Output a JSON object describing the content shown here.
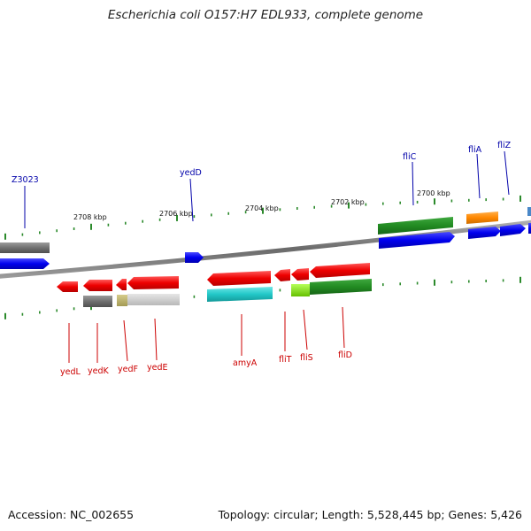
{
  "title": "Escherichia coli O157:H7 EDL933, complete genome",
  "accession": "Accession: NC_002655",
  "stats": "Topology: circular; Length: 5,528,445 bp; Genes: 5,426",
  "colors": {
    "backbone": "#888888",
    "tick": "#2b8a2b",
    "forward_label": "#0000aa",
    "reverse_label": "#cc0000"
  },
  "scale_labels": [
    "2708 kbp",
    "2706 kbp",
    "2704 kbp",
    "2702 kbp",
    "2700 kbp"
  ],
  "genes_forward": [
    {
      "name": "Z3023",
      "color": "#0000ee"
    },
    {
      "name": "yedD",
      "color": "#0000ee"
    },
    {
      "name": "fliC",
      "color": "#228b22"
    },
    {
      "name": "fliA",
      "color": "#ff8800"
    },
    {
      "name": "fliZ",
      "color": "#0000ee"
    }
  ],
  "genes_reverse": [
    {
      "name": "yedL",
      "color": "#ee0000"
    },
    {
      "name": "yedK",
      "color": "#ee0000"
    },
    {
      "name": "yedF",
      "color": "#ee0000"
    },
    {
      "name": "yedE",
      "color": "#ee0000"
    },
    {
      "name": "amyA",
      "color": "#ee0000"
    },
    {
      "name": "fliT",
      "color": "#ee0000"
    },
    {
      "name": "fliS",
      "color": "#ee0000"
    },
    {
      "name": "fliD",
      "color": "#ee0000"
    }
  ]
}
